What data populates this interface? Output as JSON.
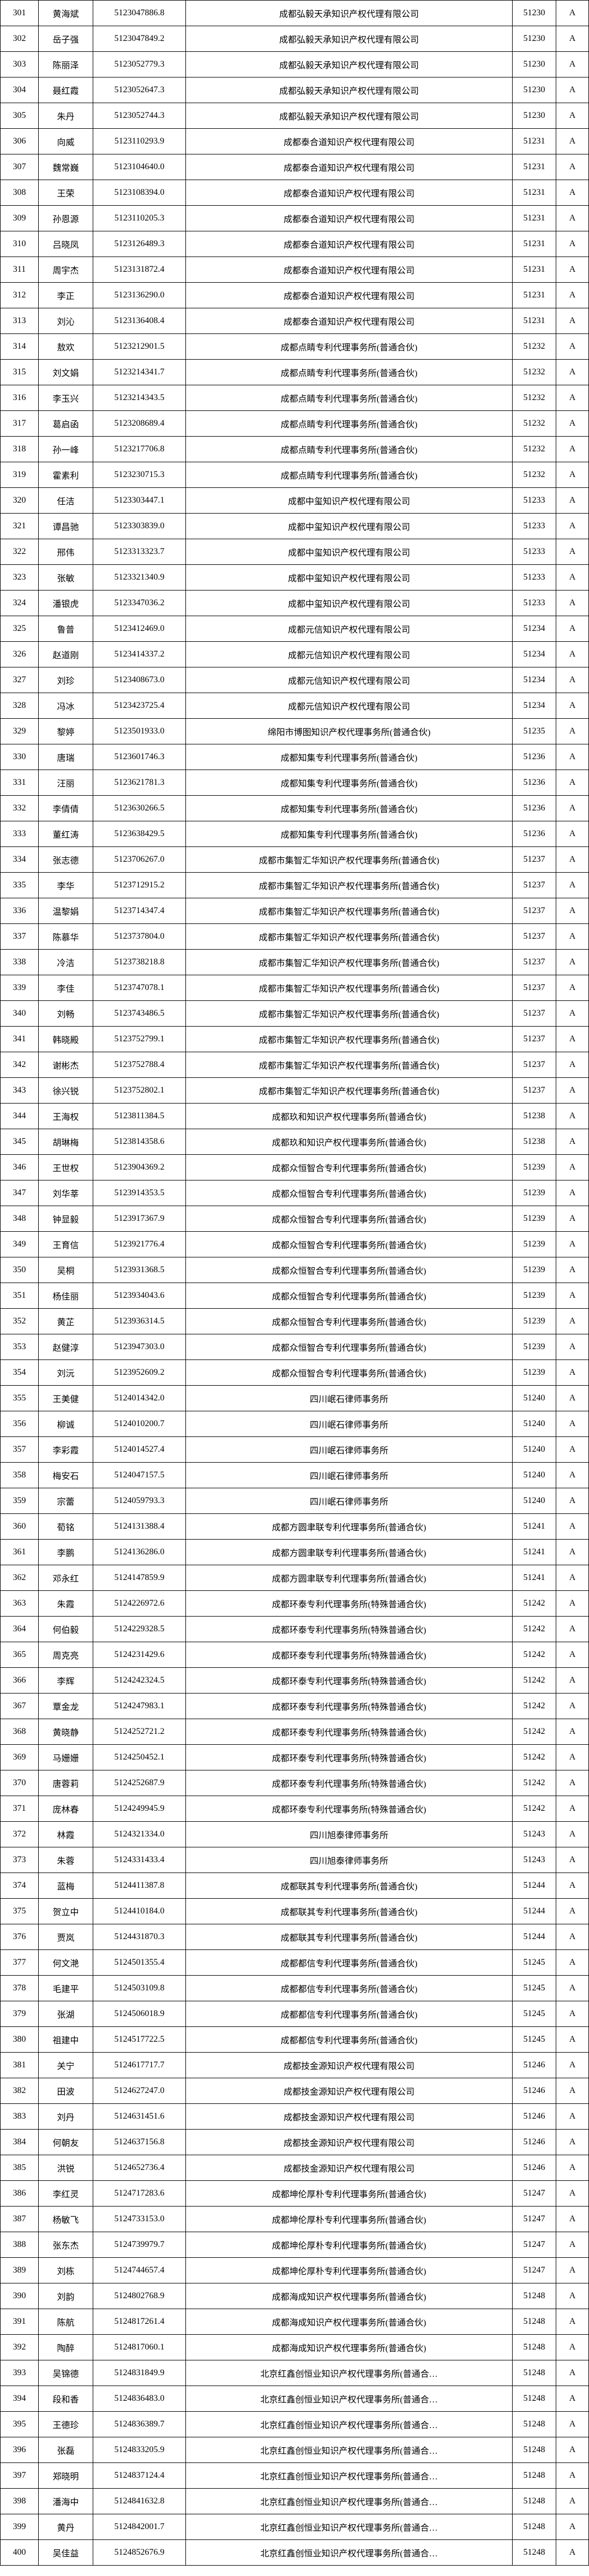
{
  "rows": [
    {
      "idx": "301",
      "name": "黄海斌",
      "id": "5123047886.8",
      "company": "成都弘毅天承知识产权代理有限公司",
      "code": "51230",
      "grade": "A"
    },
    {
      "idx": "302",
      "name": "岳子强",
      "id": "5123047849.2",
      "company": "成都弘毅天承知识产权代理有限公司",
      "code": "51230",
      "grade": "A"
    },
    {
      "idx": "303",
      "name": "陈丽泽",
      "id": "5123052779.3",
      "company": "成都弘毅天承知识产权代理有限公司",
      "code": "51230",
      "grade": "A"
    },
    {
      "idx": "304",
      "name": "聂红霞",
      "id": "5123052647.3",
      "company": "成都弘毅天承知识产权代理有限公司",
      "code": "51230",
      "grade": "A"
    },
    {
      "idx": "305",
      "name": "朱丹",
      "id": "5123052744.3",
      "company": "成都弘毅天承知识产权代理有限公司",
      "code": "51230",
      "grade": "A"
    },
    {
      "idx": "306",
      "name": "向威",
      "id": "5123110293.9",
      "company": "成都泰合道知识产权代理有限公司",
      "code": "51231",
      "grade": "A"
    },
    {
      "idx": "307",
      "name": "魏常巍",
      "id": "5123104640.0",
      "company": "成都泰合道知识产权代理有限公司",
      "code": "51231",
      "grade": "A"
    },
    {
      "idx": "308",
      "name": "王荣",
      "id": "5123108394.0",
      "company": "成都泰合道知识产权代理有限公司",
      "code": "51231",
      "grade": "A"
    },
    {
      "idx": "309",
      "name": "孙恩源",
      "id": "5123110205.3",
      "company": "成都泰合道知识产权代理有限公司",
      "code": "51231",
      "grade": "A"
    },
    {
      "idx": "310",
      "name": "吕晓凤",
      "id": "5123126489.3",
      "company": "成都泰合道知识产权代理有限公司",
      "code": "51231",
      "grade": "A"
    },
    {
      "idx": "311",
      "name": "周宇杰",
      "id": "5123131872.4",
      "company": "成都泰合道知识产权代理有限公司",
      "code": "51231",
      "grade": "A"
    },
    {
      "idx": "312",
      "name": "李正",
      "id": "5123136290.0",
      "company": "成都泰合道知识产权代理有限公司",
      "code": "51231",
      "grade": "A"
    },
    {
      "idx": "313",
      "name": "刘沁",
      "id": "5123136408.4",
      "company": "成都泰合道知识产权代理有限公司",
      "code": "51231",
      "grade": "A"
    },
    {
      "idx": "314",
      "name": "敖欢",
      "id": "5123212901.5",
      "company": "成都点睛专利代理事务所(普通合伙)",
      "code": "51232",
      "grade": "A"
    },
    {
      "idx": "315",
      "name": "刘文娟",
      "id": "5123214341.7",
      "company": "成都点睛专利代理事务所(普通合伙)",
      "code": "51232",
      "grade": "A"
    },
    {
      "idx": "316",
      "name": "李玉兴",
      "id": "5123214343.5",
      "company": "成都点睛专利代理事务所(普通合伙)",
      "code": "51232",
      "grade": "A"
    },
    {
      "idx": "317",
      "name": "葛启函",
      "id": "5123208689.4",
      "company": "成都点睛专利代理事务所(普通合伙)",
      "code": "51232",
      "grade": "A"
    },
    {
      "idx": "318",
      "name": "孙一峰",
      "id": "5123217706.8",
      "company": "成都点睛专利代理事务所(普通合伙)",
      "code": "51232",
      "grade": "A"
    },
    {
      "idx": "319",
      "name": "霍素利",
      "id": "5123230715.3",
      "company": "成都点睛专利代理事务所(普通合伙)",
      "code": "51232",
      "grade": "A"
    },
    {
      "idx": "320",
      "name": "任洁",
      "id": "5123303447.1",
      "company": "成都中玺知识产权代理有限公司",
      "code": "51233",
      "grade": "A"
    },
    {
      "idx": "321",
      "name": "谭昌驰",
      "id": "5123303839.0",
      "company": "成都中玺知识产权代理有限公司",
      "code": "51233",
      "grade": "A"
    },
    {
      "idx": "322",
      "name": "邢伟",
      "id": "5123313323.7",
      "company": "成都中玺知识产权代理有限公司",
      "code": "51233",
      "grade": "A"
    },
    {
      "idx": "323",
      "name": "张敏",
      "id": "5123321340.9",
      "company": "成都中玺知识产权代理有限公司",
      "code": "51233",
      "grade": "A"
    },
    {
      "idx": "324",
      "name": "潘银虎",
      "id": "5123347036.2",
      "company": "成都中玺知识产权代理有限公司",
      "code": "51233",
      "grade": "A"
    },
    {
      "idx": "325",
      "name": "鲁普",
      "id": "5123412469.0",
      "company": "成都元信知识产权代理有限公司",
      "code": "51234",
      "grade": "A"
    },
    {
      "idx": "326",
      "name": "赵道刚",
      "id": "5123414337.2",
      "company": "成都元信知识产权代理有限公司",
      "code": "51234",
      "grade": "A"
    },
    {
      "idx": "327",
      "name": "刘珍",
      "id": "5123408673.0",
      "company": "成都元信知识产权代理有限公司",
      "code": "51234",
      "grade": "A"
    },
    {
      "idx": "328",
      "name": "冯冰",
      "id": "5123423725.4",
      "company": "成都元信知识产权代理有限公司",
      "code": "51234",
      "grade": "A"
    },
    {
      "idx": "329",
      "name": "黎婷",
      "id": "5123501933.0",
      "company": "绵阳市博图知识产权代理事务所(普通合伙)",
      "code": "51235",
      "grade": "A"
    },
    {
      "idx": "330",
      "name": "唐瑞",
      "id": "5123601746.3",
      "company": "成都知集专利代理事务所(普通合伙)",
      "code": "51236",
      "grade": "A"
    },
    {
      "idx": "331",
      "name": "汪丽",
      "id": "5123621781.3",
      "company": "成都知集专利代理事务所(普通合伙)",
      "code": "51236",
      "grade": "A"
    },
    {
      "idx": "332",
      "name": "李倩倩",
      "id": "5123630266.5",
      "company": "成都知集专利代理事务所(普通合伙)",
      "code": "51236",
      "grade": "A"
    },
    {
      "idx": "333",
      "name": "董红涛",
      "id": "5123638429.5",
      "company": "成都知集专利代理事务所(普通合伙)",
      "code": "51236",
      "grade": "A"
    },
    {
      "idx": "334",
      "name": "张志德",
      "id": "5123706267.0",
      "company": "成都市集智汇华知识产权代理事务所(普通合伙)",
      "code": "51237",
      "grade": "A"
    },
    {
      "idx": "335",
      "name": "李华",
      "id": "5123712915.2",
      "company": "成都市集智汇华知识产权代理事务所(普通合伙)",
      "code": "51237",
      "grade": "A"
    },
    {
      "idx": "336",
      "name": "温黎娟",
      "id": "5123714347.4",
      "company": "成都市集智汇华知识产权代理事务所(普通合伙)",
      "code": "51237",
      "grade": "A"
    },
    {
      "idx": "337",
      "name": "陈慕华",
      "id": "5123737804.0",
      "company": "成都市集智汇华知识产权代理事务所(普通合伙)",
      "code": "51237",
      "grade": "A"
    },
    {
      "idx": "338",
      "name": "冷洁",
      "id": "5123738218.8",
      "company": "成都市集智汇华知识产权代理事务所(普通合伙)",
      "code": "51237",
      "grade": "A"
    },
    {
      "idx": "339",
      "name": "李佳",
      "id": "5123747078.1",
      "company": "成都市集智汇华知识产权代理事务所(普通合伙)",
      "code": "51237",
      "grade": "A"
    },
    {
      "idx": "340",
      "name": "刘畅",
      "id": "5123743486.5",
      "company": "成都市集智汇华知识产权代理事务所(普通合伙)",
      "code": "51237",
      "grade": "A"
    },
    {
      "idx": "341",
      "name": "韩晓殿",
      "id": "5123752799.1",
      "company": "成都市集智汇华知识产权代理事务所(普通合伙)",
      "code": "51237",
      "grade": "A"
    },
    {
      "idx": "342",
      "name": "谢彬杰",
      "id": "5123752788.4",
      "company": "成都市集智汇华知识产权代理事务所(普通合伙)",
      "code": "51237",
      "grade": "A"
    },
    {
      "idx": "343",
      "name": "徐兴锐",
      "id": "5123752802.1",
      "company": "成都市集智汇华知识产权代理事务所(普通合伙)",
      "code": "51237",
      "grade": "A"
    },
    {
      "idx": "344",
      "name": "王海权",
      "id": "5123811384.5",
      "company": "成都玖和知识产权代理事务所(普通合伙)",
      "code": "51238",
      "grade": "A"
    },
    {
      "idx": "345",
      "name": "胡琳梅",
      "id": "5123814358.6",
      "company": "成都玖和知识产权代理事务所(普通合伙)",
      "code": "51238",
      "grade": "A"
    },
    {
      "idx": "346",
      "name": "王世权",
      "id": "5123904369.2",
      "company": "成都众恒智合专利代理事务所(普通合伙)",
      "code": "51239",
      "grade": "A"
    },
    {
      "idx": "347",
      "name": "刘华莘",
      "id": "5123914353.5",
      "company": "成都众恒智合专利代理事务所(普通合伙)",
      "code": "51239",
      "grade": "A"
    },
    {
      "idx": "348",
      "name": "钟显毅",
      "id": "5123917367.9",
      "company": "成都众恒智合专利代理事务所(普通合伙)",
      "code": "51239",
      "grade": "A"
    },
    {
      "idx": "349",
      "name": "王育信",
      "id": "5123921776.4",
      "company": "成都众恒智合专利代理事务所(普通合伙)",
      "code": "51239",
      "grade": "A"
    },
    {
      "idx": "350",
      "name": "吴桐",
      "id": "5123931368.5",
      "company": "成都众恒智合专利代理事务所(普通合伙)",
      "code": "51239",
      "grade": "A"
    },
    {
      "idx": "351",
      "name": "杨佳丽",
      "id": "5123934043.6",
      "company": "成都众恒智合专利代理事务所(普通合伙)",
      "code": "51239",
      "grade": "A"
    },
    {
      "idx": "352",
      "name": "黄芷",
      "id": "5123936314.5",
      "company": "成都众恒智合专利代理事务所(普通合伙)",
      "code": "51239",
      "grade": "A"
    },
    {
      "idx": "353",
      "name": "赵健淳",
      "id": "5123947303.0",
      "company": "成都众恒智合专利代理事务所(普通合伙)",
      "code": "51239",
      "grade": "A"
    },
    {
      "idx": "354",
      "name": "刘沅",
      "id": "5123952609.2",
      "company": "成都众恒智合专利代理事务所(普通合伙)",
      "code": "51239",
      "grade": "A"
    },
    {
      "idx": "355",
      "name": "王美健",
      "id": "5124014342.0",
      "company": "四川岷石律师事务所",
      "code": "51240",
      "grade": "A"
    },
    {
      "idx": "356",
      "name": "柳诚",
      "id": "5124010200.7",
      "company": "四川岷石律师事务所",
      "code": "51240",
      "grade": "A"
    },
    {
      "idx": "357",
      "name": "李彩霞",
      "id": "5124014527.4",
      "company": "四川岷石律师事务所",
      "code": "51240",
      "grade": "A"
    },
    {
      "idx": "358",
      "name": "梅安石",
      "id": "5124047157.5",
      "company": "四川岷石律师事务所",
      "code": "51240",
      "grade": "A"
    },
    {
      "idx": "359",
      "name": "宗蕾",
      "id": "5124059793.3",
      "company": "四川岷石律师事务所",
      "code": "51240",
      "grade": "A"
    },
    {
      "idx": "360",
      "name": "荀铭",
      "id": "5124131388.4",
      "company": "成都方圆聿联专利代理事务所(普通合伙)",
      "code": "51241",
      "grade": "A"
    },
    {
      "idx": "361",
      "name": "李鹏",
      "id": "5124136286.0",
      "company": "成都方圆聿联专利代理事务所(普通合伙)",
      "code": "51241",
      "grade": "A"
    },
    {
      "idx": "362",
      "name": "邓永红",
      "id": "5124147859.9",
      "company": "成都方圆聿联专利代理事务所(普通合伙)",
      "code": "51241",
      "grade": "A"
    },
    {
      "idx": "363",
      "name": "朱霞",
      "id": "5124226972.6",
      "company": "成都环泰专利代理事务所(特殊普通合伙)",
      "code": "51242",
      "grade": "A"
    },
    {
      "idx": "364",
      "name": "何伯毅",
      "id": "5124229328.5",
      "company": "成都环泰专利代理事务所(特殊普通合伙)",
      "code": "51242",
      "grade": "A"
    },
    {
      "idx": "365",
      "name": "周克亮",
      "id": "5124231429.6",
      "company": "成都环泰专利代理事务所(特殊普通合伙)",
      "code": "51242",
      "grade": "A"
    },
    {
      "idx": "366",
      "name": "李辉",
      "id": "5124242324.5",
      "company": "成都环泰专利代理事务所(特殊普通合伙)",
      "code": "51242",
      "grade": "A"
    },
    {
      "idx": "367",
      "name": "覃金龙",
      "id": "5124247983.1",
      "company": "成都环泰专利代理事务所(特殊普通合伙)",
      "code": "51242",
      "grade": "A"
    },
    {
      "idx": "368",
      "name": "黄晓静",
      "id": "5124252721.2",
      "company": "成都环泰专利代理事务所(特殊普通合伙)",
      "code": "51242",
      "grade": "A"
    },
    {
      "idx": "369",
      "name": "马姗姗",
      "id": "5124250452.1",
      "company": "成都环泰专利代理事务所(特殊普通合伙)",
      "code": "51242",
      "grade": "A"
    },
    {
      "idx": "370",
      "name": "唐蓉莉",
      "id": "5124252687.9",
      "company": "成都环泰专利代理事务所(特殊普通合伙)",
      "code": "51242",
      "grade": "A"
    },
    {
      "idx": "371",
      "name": "庞林春",
      "id": "5124249945.9",
      "company": "成都环泰专利代理事务所(特殊普通合伙)",
      "code": "51242",
      "grade": "A"
    },
    {
      "idx": "372",
      "name": "林霞",
      "id": "5124321334.0",
      "company": "四川旭泰律师事务所",
      "code": "51243",
      "grade": "A"
    },
    {
      "idx": "373",
      "name": "朱蓉",
      "id": "5124331433.4",
      "company": "四川旭泰律师事务所",
      "code": "51243",
      "grade": "A"
    },
    {
      "idx": "374",
      "name": "蓝梅",
      "id": "5124411387.8",
      "company": "成都联其专利代理事务所(普通合伙)",
      "code": "51244",
      "grade": "A"
    },
    {
      "idx": "375",
      "name": "贺立中",
      "id": "5124410184.0",
      "company": "成都联其专利代理事务所(普通合伙)",
      "code": "51244",
      "grade": "A"
    },
    {
      "idx": "376",
      "name": "贾岚",
      "id": "5124431870.3",
      "company": "成都联其专利代理事务所(普通合伙)",
      "code": "51244",
      "grade": "A"
    },
    {
      "idx": "377",
      "name": "何文滟",
      "id": "5124501355.4",
      "company": "成都都信专利代理事务所(普通合伙)",
      "code": "51245",
      "grade": "A"
    },
    {
      "idx": "378",
      "name": "毛建平",
      "id": "5124503109.8",
      "company": "成都都信专利代理事务所(普通合伙)",
      "code": "51245",
      "grade": "A"
    },
    {
      "idx": "379",
      "name": "张湖",
      "id": "5124506018.9",
      "company": "成都都信专利代理事务所(普通合伙)",
      "code": "51245",
      "grade": "A"
    },
    {
      "idx": "380",
      "name": "祖建中",
      "id": "5124517722.5",
      "company": "成都都信专利代理事务所(普通合伙)",
      "code": "51245",
      "grade": "A"
    },
    {
      "idx": "381",
      "name": "关宁",
      "id": "5124617717.7",
      "company": "成都技金源知识产权代理有限公司",
      "code": "51246",
      "grade": "A"
    },
    {
      "idx": "382",
      "name": "田波",
      "id": "5124627247.0",
      "company": "成都技金源知识产权代理有限公司",
      "code": "51246",
      "grade": "A"
    },
    {
      "idx": "383",
      "name": "刘丹",
      "id": "5124631451.6",
      "company": "成都技金源知识产权代理有限公司",
      "code": "51246",
      "grade": "A"
    },
    {
      "idx": "384",
      "name": "何朝友",
      "id": "5124637156.8",
      "company": "成都技金源知识产权代理有限公司",
      "code": "51246",
      "grade": "A"
    },
    {
      "idx": "385",
      "name": "洪锐",
      "id": "5124652736.4",
      "company": "成都技金源知识产权代理有限公司",
      "code": "51246",
      "grade": "A"
    },
    {
      "idx": "386",
      "name": "李红灵",
      "id": "5124717283.6",
      "company": "成都坤伦厚朴专利代理事务所(普通合伙)",
      "code": "51247",
      "grade": "A"
    },
    {
      "idx": "387",
      "name": "杨敏飞",
      "id": "5124733153.0",
      "company": "成都坤伦厚朴专利代理事务所(普通合伙)",
      "code": "51247",
      "grade": "A"
    },
    {
      "idx": "388",
      "name": "张东杰",
      "id": "5124739979.7",
      "company": "成都坤伦厚朴专利代理事务所(普通合伙)",
      "code": "51247",
      "grade": "A"
    },
    {
      "idx": "389",
      "name": "刘栋",
      "id": "5124744657.4",
      "company": "成都坤伦厚朴专利代理事务所(普通合伙)",
      "code": "51247",
      "grade": "A"
    },
    {
      "idx": "390",
      "name": "刘韵",
      "id": "5124802768.9",
      "company": "成都海成知识产权代理事务所(普通合伙)",
      "code": "51248",
      "grade": "A"
    },
    {
      "idx": "391",
      "name": "陈航",
      "id": "5124817261.4",
      "company": "成都海成知识产权代理事务所(普通合伙)",
      "code": "51248",
      "grade": "A"
    },
    {
      "idx": "392",
      "name": "陶醉",
      "id": "5124817060.1",
      "company": "成都海成知识产权代理事务所(普通合伙)",
      "code": "51248",
      "grade": "A"
    },
    {
      "idx": "393",
      "name": "吴锦德",
      "id": "5124831849.9",
      "company": "北京红鑫创恒业知识产权代理事务所(普通合…",
      "code": "51248",
      "grade": "A"
    },
    {
      "idx": "394",
      "name": "段和香",
      "id": "5124836483.0",
      "company": "北京红鑫创恒业知识产权代理事务所(普通合…",
      "code": "51248",
      "grade": "A"
    },
    {
      "idx": "395",
      "name": "王德珍",
      "id": "5124836389.7",
      "company": "北京红鑫创恒业知识产权代理事务所(普通合…",
      "code": "51248",
      "grade": "A"
    },
    {
      "idx": "396",
      "name": "张磊",
      "id": "5124833205.9",
      "company": "北京红鑫创恒业知识产权代理事务所(普通合…",
      "code": "51248",
      "grade": "A"
    },
    {
      "idx": "397",
      "name": "郑晓明",
      "id": "5124837124.4",
      "company": "北京红鑫创恒业知识产权代理事务所(普通合…",
      "code": "51248",
      "grade": "A"
    },
    {
      "idx": "398",
      "name": "潘海中",
      "id": "5124841632.8",
      "company": "北京红鑫创恒业知识产权代理事务所(普通合…",
      "code": "51248",
      "grade": "A"
    },
    {
      "idx": "399",
      "name": "黄丹",
      "id": "5124842001.7",
      "company": "北京红鑫创恒业知识产权代理事务所(普通合…",
      "code": "51248",
      "grade": "A"
    },
    {
      "idx": "400",
      "name": "吴佳益",
      "id": "5124852676.9",
      "company": "北京红鑫创恒业知识产权代理事务所(普通合…",
      "code": "51248",
      "grade": "A"
    }
  ]
}
